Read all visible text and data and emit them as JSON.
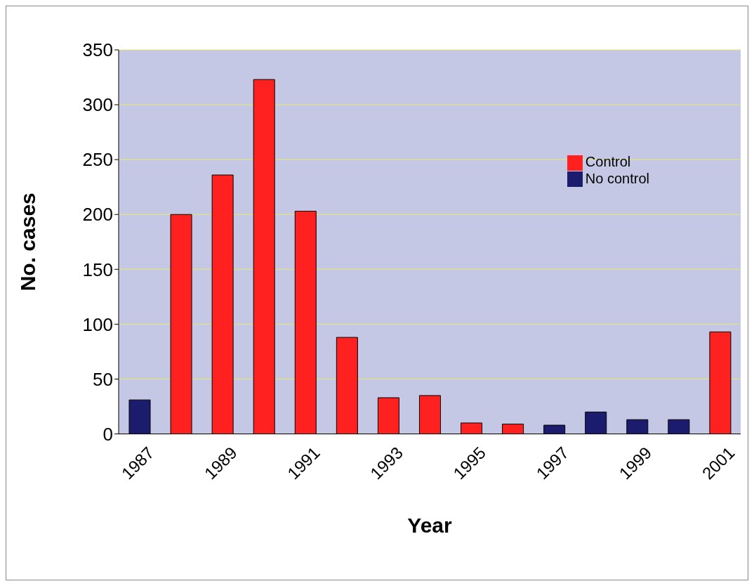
{
  "chart_data": {
    "type": "bar",
    "xlabel": "Year",
    "ylabel": "No. cases",
    "categories": [
      "1987",
      null,
      "1989",
      null,
      "1991",
      null,
      "1993",
      null,
      "1995",
      null,
      "1997",
      null,
      "1999",
      null,
      "2001"
    ],
    "series": [
      {
        "name": "Control",
        "color": "#ff2020",
        "values": [
          null,
          200,
          236,
          323,
          203,
          88,
          33,
          35,
          10,
          9,
          null,
          null,
          null,
          null,
          93
        ]
      },
      {
        "name": "No control",
        "color": "#1c1c6e",
        "values": [
          31,
          null,
          null,
          null,
          null,
          null,
          null,
          null,
          null,
          null,
          8,
          20,
          13,
          13,
          null
        ]
      }
    ],
    "ylim": [
      0,
      350
    ],
    "yticks": [
      0,
      50,
      100,
      150,
      200,
      250,
      300,
      350
    ],
    "grid": "y",
    "legend": "top right"
  }
}
